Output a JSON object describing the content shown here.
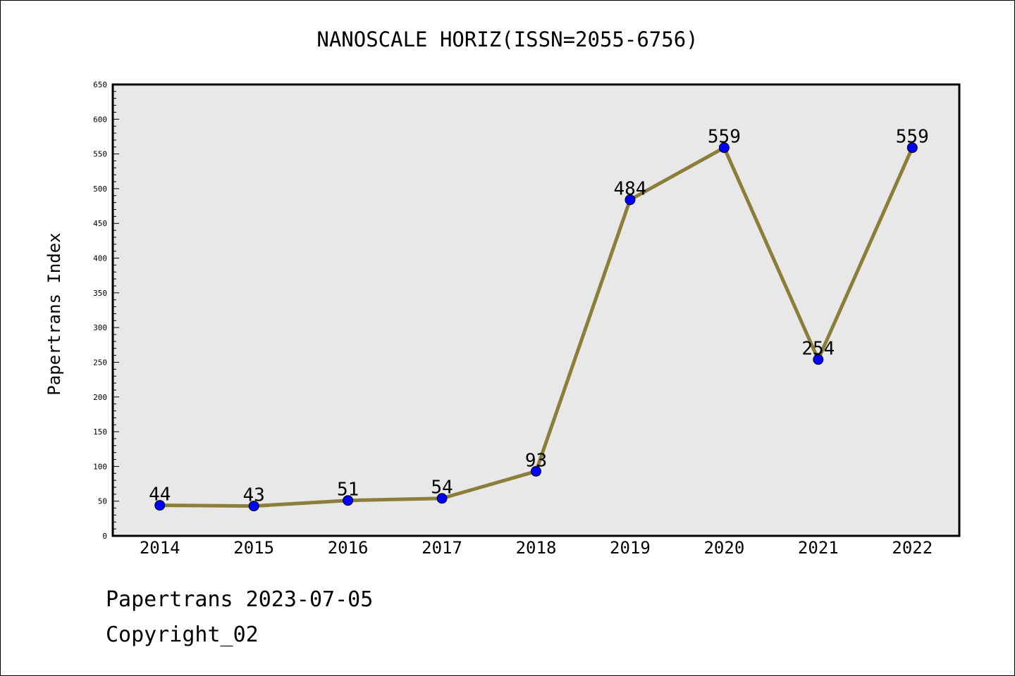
{
  "chart_data": {
    "type": "line",
    "title": "NANOSCALE HORIZ(ISSN=2055-6756)",
    "xlabel": "",
    "ylabel": "Papertrans Index",
    "categories": [
      "2014",
      "2015",
      "2016",
      "2017",
      "2018",
      "2019",
      "2020",
      "2021",
      "2022"
    ],
    "values": [
      44,
      43,
      51,
      54,
      93,
      484,
      559,
      254,
      559
    ],
    "data_labels": [
      "44",
      "43",
      "51",
      "54",
      "93",
      "484",
      "559",
      "254",
      "559"
    ],
    "ylim": [
      0,
      650
    ],
    "yticks": [
      "0",
      "50",
      "100",
      "150",
      "200",
      "250",
      "300",
      "350",
      "400",
      "450",
      "500",
      "550",
      "600",
      "650"
    ],
    "grid": false,
    "legend": "none",
    "colors": {
      "line": "#8b7d3a",
      "marker": "#0000ff",
      "plot_background": "#e8e8e8"
    }
  },
  "footer": {
    "line1": "Papertrans 2023-07-05",
    "line2": "Copyright_02"
  }
}
